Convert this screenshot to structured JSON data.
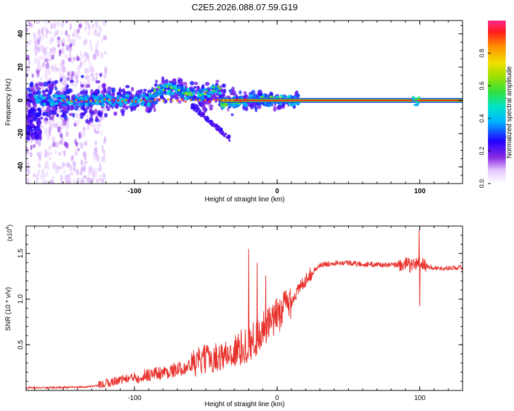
{
  "title": "C2E5.2026.088.07.59.G19",
  "chart_data": [
    {
      "type": "heatmap",
      "xlabel": "Height of straight line (km)",
      "ylabel": "Frequency (Hz)",
      "xlim": [
        -176,
        130
      ],
      "ylim": [
        -50,
        48
      ],
      "x_ticks": [
        -100,
        0,
        100
      ],
      "y_ticks": [
        -40,
        -20,
        0,
        20,
        40
      ],
      "colorbar": {
        "label": "Normalized spectral amplitude",
        "range": [
          0,
          1
        ],
        "ticks": [
          0.0,
          0.2,
          0.4,
          0.6,
          0.8
        ],
        "tick_labels": [
          "0.0",
          "0.2",
          "0.4",
          "0.6",
          "0.8"
        ]
      },
      "description_series": [
        {
          "name": "carrier line",
          "x_range": [
            -176,
            130
          ],
          "frequency": 0,
          "amplitude": 1.0
        },
        {
          "name": "descending branch",
          "x": [
            -60,
            -50,
            -40,
            -33
          ],
          "frequency": [
            -3,
            -8,
            -15,
            -23
          ],
          "amplitude": 0.2
        }
      ]
    },
    {
      "type": "line",
      "xlabel": "Height of straight line (km)",
      "ylabel": "SNR (10 * v/v)",
      "y_multiplier": "(x10",
      "y_multiplier_exp": "4",
      "y_multiplier_close": ")",
      "xlim": [
        -176,
        130
      ],
      "ylim": [
        0,
        1.8
      ],
      "x_ticks": [
        -100,
        0,
        100
      ],
      "y_ticks": [
        0.5,
        1.0,
        1.5
      ],
      "y_tick_labels": [
        "0.5",
        "1.0",
        "1.5"
      ],
      "series": [
        {
          "name": "SNR",
          "color": "#e8302b",
          "x": [
            -176,
            -160,
            -140,
            -125,
            -110,
            -100,
            -90,
            -80,
            -70,
            -60,
            -50,
            -40,
            -30,
            -20,
            -15,
            -10,
            -5,
            0,
            5,
            10,
            15,
            20,
            25,
            30,
            40,
            50,
            60,
            70,
            80,
            90,
            95,
            100,
            105,
            110,
            120,
            130
          ],
          "y": [
            0.03,
            0.03,
            0.035,
            0.05,
            0.12,
            0.14,
            0.17,
            0.19,
            0.22,
            0.27,
            0.33,
            0.36,
            0.4,
            0.5,
            0.55,
            0.65,
            0.7,
            0.8,
            0.9,
            0.98,
            1.1,
            1.22,
            1.3,
            1.37,
            1.4,
            1.4,
            1.38,
            1.38,
            1.37,
            1.38,
            1.37,
            1.4,
            1.36,
            1.34,
            1.34,
            1.35
          ]
        }
      ],
      "spikes": [
        {
          "x": -20,
          "y": 1.55
        },
        {
          "x": -14,
          "y": 1.4
        },
        {
          "x": -8,
          "y": 1.26
        },
        {
          "x": 99.5,
          "y": 1.76
        },
        {
          "x": 100,
          "y": 0.92
        }
      ]
    }
  ]
}
